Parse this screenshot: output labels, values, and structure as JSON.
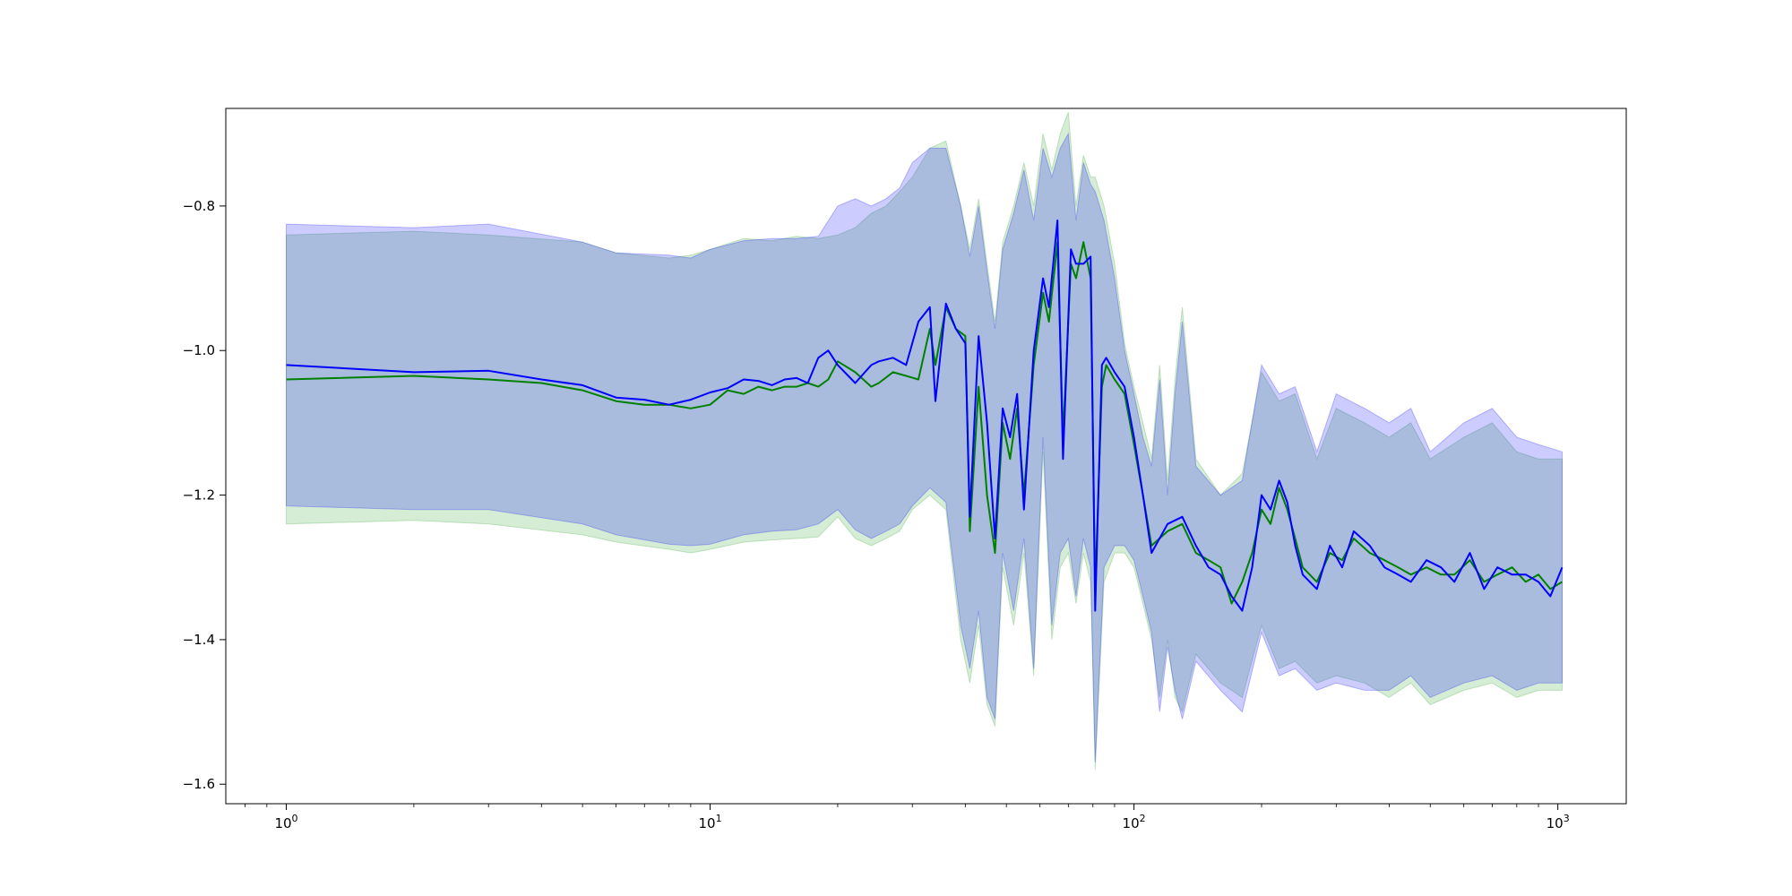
{
  "chart_data": {
    "type": "line",
    "title": "",
    "xlabel": "",
    "ylabel": "",
    "xscale": "log",
    "xlim": [
      0.72,
      1450
    ],
    "ylim": [
      -1.627,
      -0.665
    ],
    "grid": false,
    "legend": null,
    "x_ticks": [
      {
        "value": 1,
        "base": "10",
        "exp": "0"
      },
      {
        "value": 10,
        "base": "10",
        "exp": "1"
      },
      {
        "value": 100,
        "base": "10",
        "exp": "2"
      },
      {
        "value": 1000,
        "base": "10",
        "exp": "3"
      }
    ],
    "y_ticks": [
      {
        "value": -0.8,
        "label": "−0.8"
      },
      {
        "value": -1.0,
        "label": "−1.0"
      },
      {
        "value": -1.2,
        "label": "−1.2"
      },
      {
        "value": -1.4,
        "label": "−1.4"
      },
      {
        "value": -1.6,
        "label": "−1.6"
      }
    ],
    "colors": {
      "green_line": "#008000",
      "blue_line": "#0000ff",
      "green_band": "#2ca02c",
      "blue_band": "#0000ff",
      "band_opacity": 0.2
    },
    "series": [
      {
        "color": "#008000",
        "x": [
          1,
          2,
          3,
          4,
          5,
          6,
          7,
          8,
          9,
          10,
          11,
          12,
          13,
          14,
          15,
          16,
          17,
          18,
          19,
          20,
          22,
          24,
          25,
          27,
          29,
          31,
          33,
          34,
          36,
          38,
          40,
          41,
          43,
          45,
          47,
          49,
          51,
          53,
          55,
          58,
          61,
          63,
          66,
          68,
          71,
          73,
          76,
          79,
          81,
          84,
          86,
          90,
          95,
          100,
          105,
          110,
          120,
          130,
          140,
          150,
          160,
          170,
          180,
          190,
          200,
          210,
          220,
          230,
          240,
          250,
          270,
          290,
          310,
          330,
          360,
          390,
          420,
          450,
          490,
          530,
          570,
          620,
          670,
          720,
          780,
          840,
          900,
          960,
          1024
        ],
        "y": [
          -1.04,
          -1.035,
          -1.04,
          -1.045,
          -1.055,
          -1.07,
          -1.075,
          -1.075,
          -1.08,
          -1.075,
          -1.055,
          -1.06,
          -1.05,
          -1.055,
          -1.05,
          -1.05,
          -1.045,
          -1.05,
          -1.04,
          -1.015,
          -1.03,
          -1.05,
          -1.045,
          -1.03,
          -1.035,
          -1.04,
          -0.97,
          -1.02,
          -0.94,
          -0.97,
          -0.98,
          -1.25,
          -1.05,
          -1.2,
          -1.28,
          -1.1,
          -1.15,
          -1.08,
          -1.2,
          -1.02,
          -0.92,
          -0.96,
          -0.85,
          -1.12,
          -0.88,
          -0.9,
          -0.85,
          -0.9,
          -1.33,
          -1.05,
          -1.02,
          -1.04,
          -1.06,
          -1.13,
          -1.2,
          -1.27,
          -1.25,
          -1.24,
          -1.28,
          -1.29,
          -1.3,
          -1.35,
          -1.32,
          -1.28,
          -1.22,
          -1.24,
          -1.19,
          -1.22,
          -1.26,
          -1.3,
          -1.32,
          -1.28,
          -1.29,
          -1.26,
          -1.28,
          -1.29,
          -1.3,
          -1.31,
          -1.3,
          -1.31,
          -1.31,
          -1.29,
          -1.32,
          -1.31,
          -1.3,
          -1.32,
          -1.31,
          -1.33,
          -1.32
        ]
      },
      {
        "color": "#0000ff",
        "x": [
          1,
          2,
          3,
          4,
          5,
          6,
          7,
          8,
          9,
          10,
          11,
          12,
          13,
          14,
          15,
          16,
          17,
          18,
          19,
          20,
          22,
          24,
          25,
          27,
          29,
          31,
          33,
          34,
          36,
          38,
          40,
          41,
          43,
          45,
          47,
          49,
          51,
          53,
          55,
          58,
          61,
          63,
          66,
          68,
          71,
          73,
          76,
          79,
          81,
          84,
          86,
          90,
          95,
          100,
          105,
          110,
          120,
          130,
          140,
          150,
          160,
          170,
          180,
          190,
          200,
          210,
          220,
          230,
          240,
          250,
          270,
          290,
          310,
          330,
          360,
          390,
          420,
          450,
          490,
          530,
          570,
          620,
          670,
          720,
          780,
          840,
          900,
          960,
          1024
        ],
        "y": [
          -1.02,
          -1.03,
          -1.028,
          -1.04,
          -1.048,
          -1.065,
          -1.068,
          -1.075,
          -1.068,
          -1.058,
          -1.052,
          -1.04,
          -1.042,
          -1.048,
          -1.04,
          -1.038,
          -1.045,
          -1.01,
          -1.0,
          -1.02,
          -1.045,
          -1.02,
          -1.015,
          -1.01,
          -1.02,
          -0.96,
          -0.94,
          -1.07,
          -0.935,
          -0.97,
          -0.99,
          -1.23,
          -0.98,
          -1.1,
          -1.26,
          -1.08,
          -1.12,
          -1.06,
          -1.22,
          -1.0,
          -0.9,
          -0.94,
          -0.82,
          -1.15,
          -0.86,
          -0.88,
          -0.88,
          -0.87,
          -1.36,
          -1.02,
          -1.01,
          -1.03,
          -1.05,
          -1.12,
          -1.2,
          -1.28,
          -1.24,
          -1.23,
          -1.27,
          -1.3,
          -1.31,
          -1.34,
          -1.36,
          -1.3,
          -1.2,
          -1.22,
          -1.18,
          -1.21,
          -1.27,
          -1.31,
          -1.33,
          -1.27,
          -1.3,
          -1.25,
          -1.27,
          -1.3,
          -1.31,
          -1.32,
          -1.29,
          -1.3,
          -1.32,
          -1.28,
          -1.33,
          -1.3,
          -1.31,
          -1.31,
          -1.32,
          -1.34,
          -1.3
        ]
      }
    ],
    "bands": [
      {
        "color": "#2ca02c",
        "x": [
          1,
          2,
          3,
          5,
          6,
          8,
          9,
          10,
          12,
          14,
          16,
          18,
          20,
          22,
          24,
          26,
          28,
          30,
          33,
          36,
          39,
          41,
          43,
          45,
          47,
          49,
          52,
          55,
          58,
          61,
          64,
          67,
          70,
          73,
          76,
          79,
          81,
          85,
          90,
          95,
          100,
          105,
          110,
          115,
          120,
          125,
          130,
          140,
          160,
          180,
          200,
          220,
          240,
          270,
          300,
          350,
          400,
          450,
          500,
          600,
          700,
          800,
          900,
          1024
        ],
        "upper": [
          -0.84,
          -0.835,
          -0.84,
          -0.85,
          -0.865,
          -0.872,
          -0.868,
          -0.86,
          -0.845,
          -0.848,
          -0.842,
          -0.845,
          -0.84,
          -0.83,
          -0.81,
          -0.8,
          -0.78,
          -0.76,
          -0.72,
          -0.71,
          -0.8,
          -0.86,
          -0.79,
          -0.88,
          -0.96,
          -0.85,
          -0.8,
          -0.74,
          -0.8,
          -0.7,
          -0.75,
          -0.7,
          -0.67,
          -0.8,
          -0.73,
          -0.76,
          -0.76,
          -0.8,
          -0.88,
          -0.99,
          -1.05,
          -1.1,
          -1.15,
          -1.02,
          -1.18,
          -1.04,
          -0.94,
          -1.15,
          -1.2,
          -1.17,
          -1.03,
          -1.07,
          -1.06,
          -1.15,
          -1.08,
          -1.1,
          -1.12,
          -1.1,
          -1.15,
          -1.12,
          -1.1,
          -1.14,
          -1.15,
          -1.15
        ],
        "lower": [
          -1.24,
          -1.235,
          -1.24,
          -1.255,
          -1.265,
          -1.275,
          -1.28,
          -1.275,
          -1.265,
          -1.262,
          -1.26,
          -1.258,
          -1.23,
          -1.26,
          -1.27,
          -1.26,
          -1.25,
          -1.22,
          -1.2,
          -1.22,
          -1.4,
          -1.46,
          -1.38,
          -1.49,
          -1.52,
          -1.3,
          -1.38,
          -1.28,
          -1.45,
          -1.14,
          -1.4,
          -1.3,
          -1.28,
          -1.35,
          -1.28,
          -1.32,
          -1.58,
          -1.32,
          -1.28,
          -1.28,
          -1.3,
          -1.35,
          -1.4,
          -1.48,
          -1.4,
          -1.48,
          -1.5,
          -1.42,
          -1.46,
          -1.48,
          -1.38,
          -1.44,
          -1.43,
          -1.46,
          -1.45,
          -1.46,
          -1.48,
          -1.46,
          -1.49,
          -1.47,
          -1.46,
          -1.48,
          -1.47,
          -1.47
        ]
      },
      {
        "color": "#0000ff",
        "x": [
          1,
          2,
          3,
          5,
          6,
          8,
          9,
          10,
          12,
          14,
          16,
          18,
          20,
          22,
          24,
          26,
          28,
          30,
          33,
          36,
          39,
          41,
          43,
          45,
          47,
          49,
          52,
          55,
          58,
          61,
          64,
          67,
          70,
          73,
          76,
          79,
          81,
          85,
          90,
          95,
          100,
          105,
          110,
          115,
          120,
          125,
          130,
          140,
          160,
          180,
          200,
          220,
          240,
          270,
          300,
          350,
          400,
          450,
          500,
          600,
          700,
          800,
          900,
          1024
        ],
        "upper": [
          -0.825,
          -0.83,
          -0.825,
          -0.85,
          -0.865,
          -0.868,
          -0.872,
          -0.86,
          -0.848,
          -0.845,
          -0.845,
          -0.842,
          -0.8,
          -0.79,
          -0.8,
          -0.79,
          -0.775,
          -0.74,
          -0.72,
          -0.72,
          -0.8,
          -0.87,
          -0.8,
          -0.89,
          -0.97,
          -0.86,
          -0.81,
          -0.75,
          -0.82,
          -0.72,
          -0.76,
          -0.72,
          -0.7,
          -0.82,
          -0.74,
          -0.77,
          -0.78,
          -0.82,
          -0.9,
          -1.0,
          -1.06,
          -1.12,
          -1.16,
          -1.04,
          -1.2,
          -1.06,
          -0.96,
          -1.16,
          -1.2,
          -1.18,
          -1.02,
          -1.06,
          -1.05,
          -1.14,
          -1.06,
          -1.08,
          -1.1,
          -1.08,
          -1.14,
          -1.1,
          -1.08,
          -1.12,
          -1.13,
          -1.14
        ],
        "lower": [
          -1.215,
          -1.22,
          -1.22,
          -1.24,
          -1.255,
          -1.268,
          -1.27,
          -1.268,
          -1.255,
          -1.25,
          -1.248,
          -1.24,
          -1.22,
          -1.248,
          -1.26,
          -1.25,
          -1.24,
          -1.215,
          -1.19,
          -1.21,
          -1.38,
          -1.44,
          -1.36,
          -1.48,
          -1.51,
          -1.28,
          -1.36,
          -1.26,
          -1.44,
          -1.12,
          -1.38,
          -1.28,
          -1.26,
          -1.34,
          -1.26,
          -1.3,
          -1.57,
          -1.3,
          -1.27,
          -1.27,
          -1.29,
          -1.34,
          -1.39,
          -1.5,
          -1.41,
          -1.47,
          -1.51,
          -1.43,
          -1.47,
          -1.5,
          -1.39,
          -1.45,
          -1.44,
          -1.47,
          -1.46,
          -1.47,
          -1.47,
          -1.45,
          -1.48,
          -1.46,
          -1.45,
          -1.47,
          -1.46,
          -1.46
        ]
      }
    ]
  }
}
